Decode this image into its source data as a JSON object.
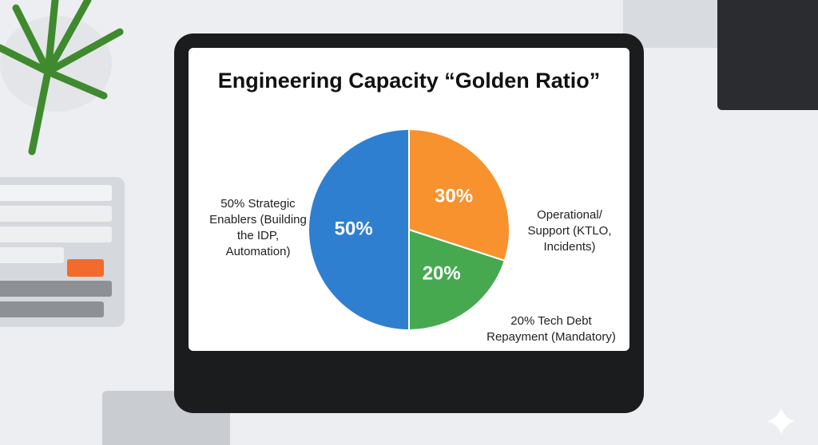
{
  "chart_data": {
    "type": "pie",
    "title": "Engineering Capacity “Golden Ratio”",
    "categories": [
      "Operational/ Support (KTLO, Incidents)",
      "20% Tech Debt Repayment (Mandatory)",
      "50% Strategic Enablers (Building the IDP, Automation)"
    ],
    "values": [
      30,
      20,
      50
    ],
    "value_labels": [
      "30%",
      "20%",
      "50%"
    ],
    "colors": [
      "#f7922f",
      "#46a94f",
      "#2f7fd1"
    ]
  }
}
